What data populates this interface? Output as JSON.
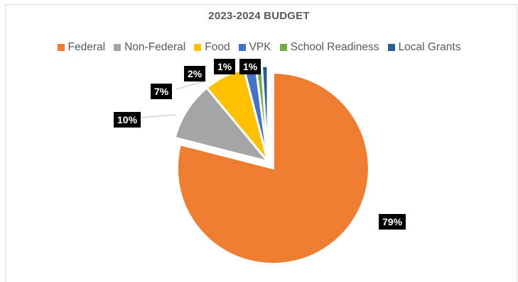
{
  "chart_data": {
    "type": "pie",
    "title": "2023-2024 BUDGET",
    "legend_position": "top",
    "exploded_slice": "Federal",
    "slices": [
      {
        "name": "Federal",
        "value": 79,
        "label": "79%",
        "color": "#ED7D31"
      },
      {
        "name": "Non-Federal",
        "value": 10,
        "label": "10%",
        "color": "#A5A5A5"
      },
      {
        "name": "Food",
        "value": 7,
        "label": "7%",
        "color": "#FFC000"
      },
      {
        "name": "VPK",
        "value": 2,
        "label": "2%",
        "color": "#4472C4"
      },
      {
        "name": "School Readiness",
        "value": 1,
        "label": "1%",
        "color": "#70AD47"
      },
      {
        "name": "Local Grants",
        "value": 1,
        "label": "1%",
        "color": "#255E91"
      }
    ]
  }
}
